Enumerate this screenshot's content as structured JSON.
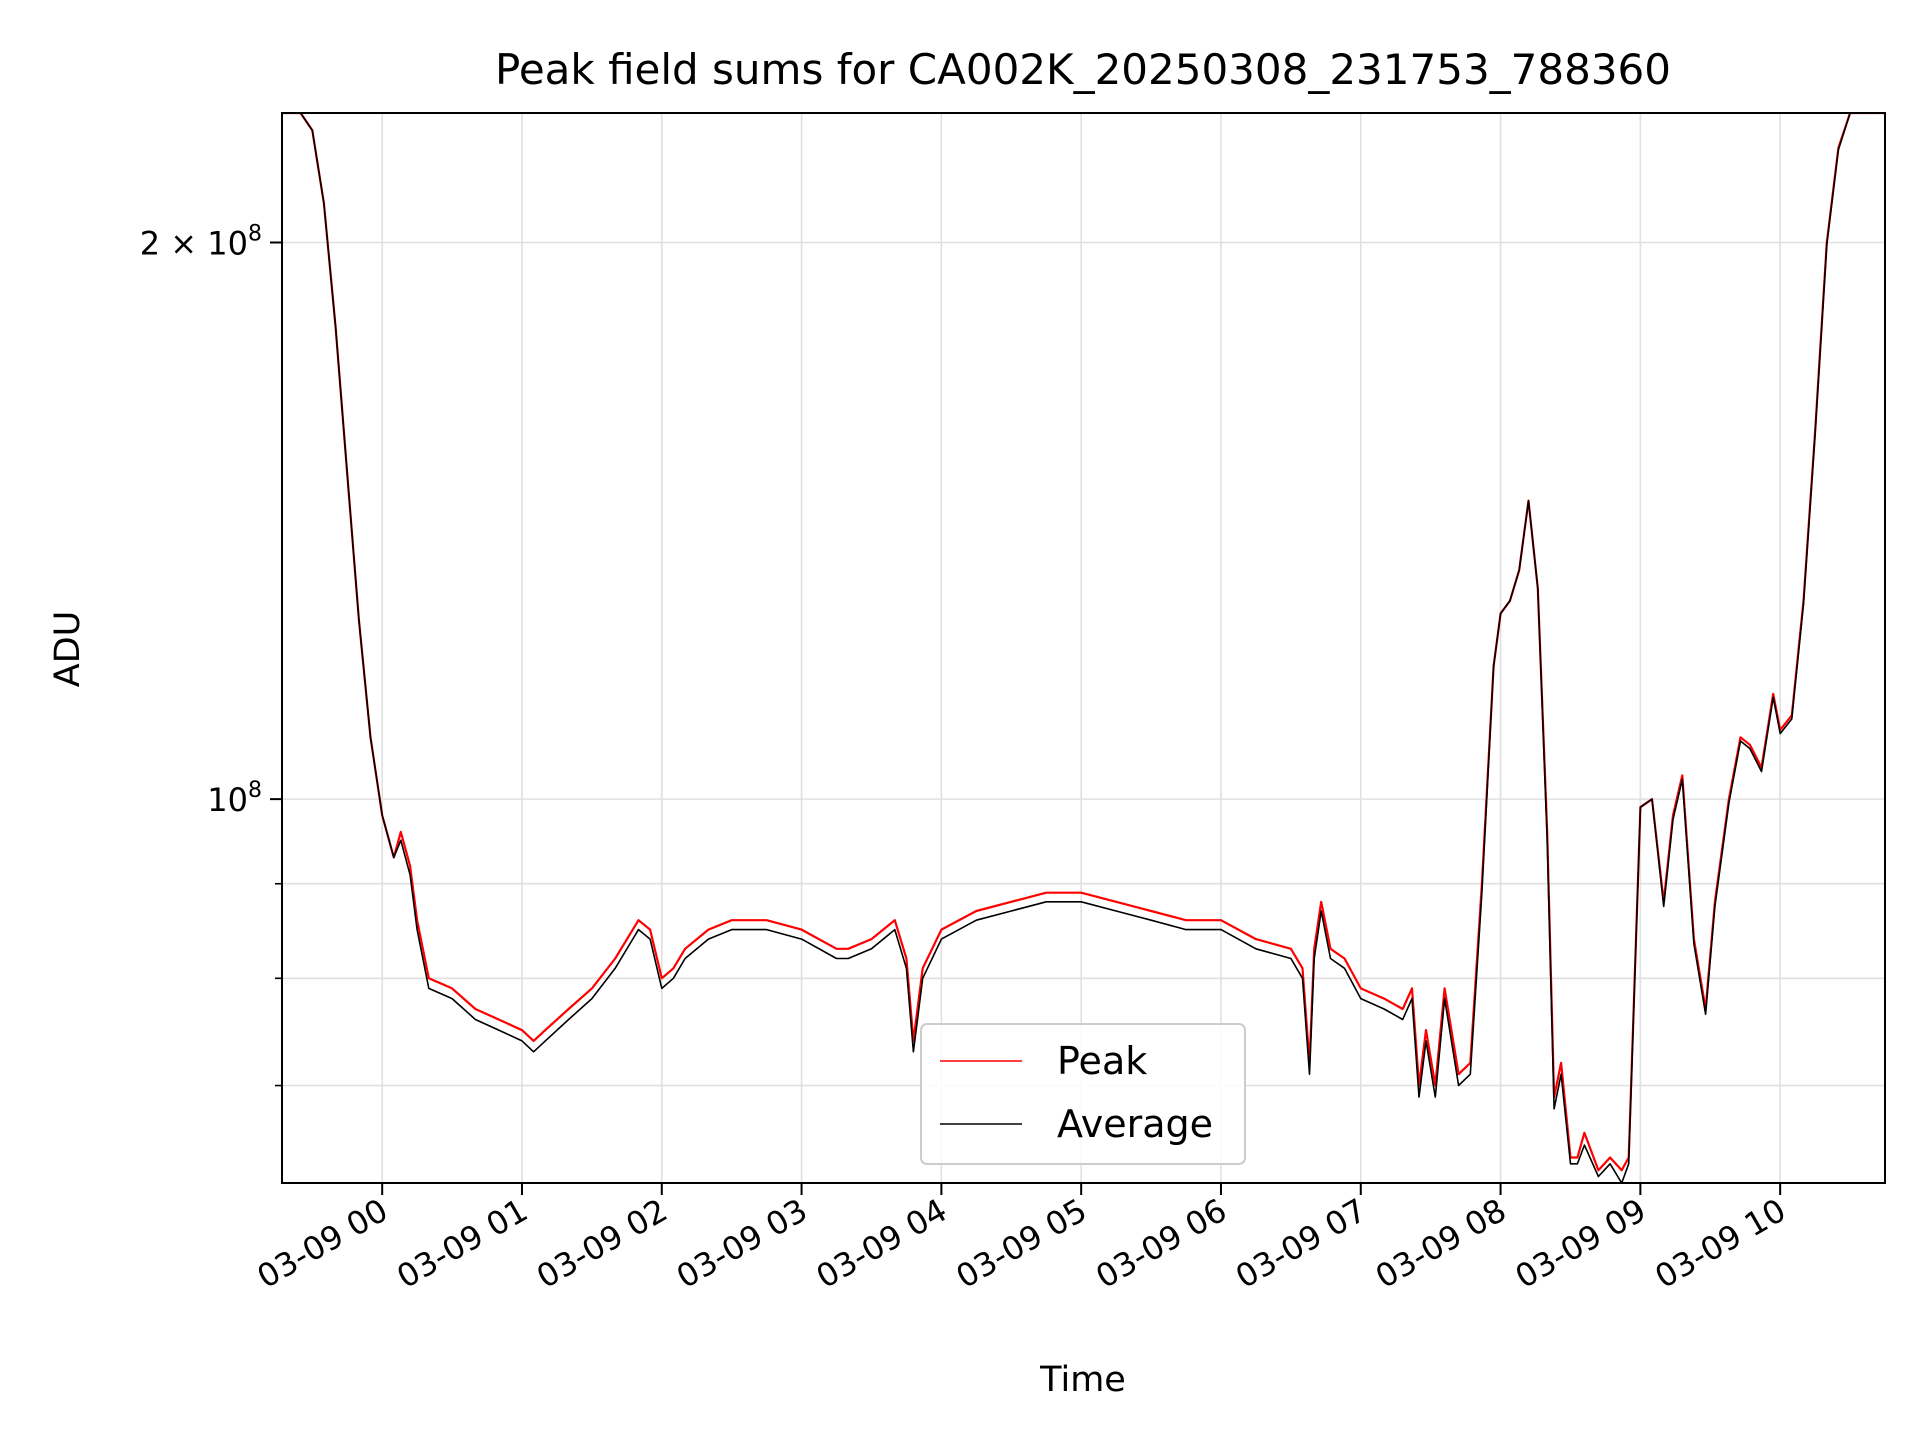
{
  "chart_data": {
    "type": "line",
    "title": "Peak field sums for CA002K_20250308_231753_788360",
    "xlabel": "Time",
    "ylabel": "ADU",
    "x_ticks": [
      "03-09 00",
      "03-09 01",
      "03-09 02",
      "03-09 03",
      "03-09 04",
      "03-09 05",
      "03-09 06",
      "03-09 07",
      "03-09 08",
      "03-09 09",
      "03-09 10"
    ],
    "y_ticks": [
      {
        "value": 200000000,
        "label": "2 × 10⁸",
        "base": "2 × 10",
        "exp": "8"
      },
      {
        "value": 100000000,
        "label": "10⁸",
        "base": "10",
        "exp": "8"
      }
    ],
    "y_scale": "log",
    "xlim": [
      "2025-03-08 23:17",
      "2025-03-09 10:45"
    ],
    "ylim": [
      62000000,
      235000000
    ],
    "grid": true,
    "legend_position": "lower-center",
    "series": [
      {
        "name": "Peak",
        "color": "#ff0000",
        "x": [
          "2025-03-08 23:17",
          "2025-03-08 23:25",
          "2025-03-08 23:30",
          "2025-03-08 23:35",
          "2025-03-08 23:40",
          "2025-03-08 23:45",
          "2025-03-08 23:50",
          "2025-03-08 23:55",
          "2025-03-09 00:00",
          "2025-03-09 00:05",
          "2025-03-09 00:08",
          "2025-03-09 00:12",
          "2025-03-09 00:15",
          "2025-03-09 00:20",
          "2025-03-09 00:30",
          "2025-03-09 00:40",
          "2025-03-09 00:50",
          "2025-03-09 01:00",
          "2025-03-09 01:05",
          "2025-03-09 01:10",
          "2025-03-09 01:20",
          "2025-03-09 01:30",
          "2025-03-09 01:40",
          "2025-03-09 01:50",
          "2025-03-09 01:55",
          "2025-03-09 02:00",
          "2025-03-09 02:05",
          "2025-03-09 02:10",
          "2025-03-09 02:20",
          "2025-03-09 02:30",
          "2025-03-09 02:45",
          "2025-03-09 03:00",
          "2025-03-09 03:15",
          "2025-03-09 03:20",
          "2025-03-09 03:30",
          "2025-03-09 03:40",
          "2025-03-09 03:45",
          "2025-03-09 03:48",
          "2025-03-09 03:52",
          "2025-03-09 04:00",
          "2025-03-09 04:15",
          "2025-03-09 04:30",
          "2025-03-09 04:45",
          "2025-03-09 05:00",
          "2025-03-09 05:15",
          "2025-03-09 05:30",
          "2025-03-09 05:45",
          "2025-03-09 06:00",
          "2025-03-09 06:15",
          "2025-03-09 06:30",
          "2025-03-09 06:35",
          "2025-03-09 06:38",
          "2025-03-09 06:40",
          "2025-03-09 06:43",
          "2025-03-09 06:47",
          "2025-03-09 06:53",
          "2025-03-09 07:00",
          "2025-03-09 07:10",
          "2025-03-09 07:18",
          "2025-03-09 07:22",
          "2025-03-09 07:25",
          "2025-03-09 07:28",
          "2025-03-09 07:32",
          "2025-03-09 07:36",
          "2025-03-09 07:42",
          "2025-03-09 07:47",
          "2025-03-09 07:52",
          "2025-03-09 07:57",
          "2025-03-09 08:00",
          "2025-03-09 08:04",
          "2025-03-09 08:08",
          "2025-03-09 08:12",
          "2025-03-09 08:16",
          "2025-03-09 08:20",
          "2025-03-09 08:23",
          "2025-03-09 08:26",
          "2025-03-09 08:30",
          "2025-03-09 08:33",
          "2025-03-09 08:36",
          "2025-03-09 08:42",
          "2025-03-09 08:47",
          "2025-03-09 08:52",
          "2025-03-09 08:55",
          "2025-03-09 09:00",
          "2025-03-09 09:05",
          "2025-03-09 09:10",
          "2025-03-09 09:14",
          "2025-03-09 09:18",
          "2025-03-09 09:23",
          "2025-03-09 09:28",
          "2025-03-09 09:32",
          "2025-03-09 09:38",
          "2025-03-09 09:43",
          "2025-03-09 09:47",
          "2025-03-09 09:52",
          "2025-03-09 09:57",
          "2025-03-09 10:00",
          "2025-03-09 10:05",
          "2025-03-09 10:10",
          "2025-03-09 10:15",
          "2025-03-09 10:20",
          "2025-03-09 10:25",
          "2025-03-09 10:30",
          "2025-03-09 10:45"
        ],
        "values": [
          235000000,
          235000000,
          230000000,
          210000000,
          180000000,
          150000000,
          125000000,
          108000000,
          98000000,
          93000000,
          96000000,
          92000000,
          86000000,
          80000000,
          79000000,
          77000000,
          76000000,
          75000000,
          74000000,
          75000000,
          77000000,
          79000000,
          82000000,
          86000000,
          85000000,
          80000000,
          81000000,
          83000000,
          85000000,
          86000000,
          86000000,
          85000000,
          83000000,
          83000000,
          84000000,
          86000000,
          82000000,
          74000000,
          81000000,
          85000000,
          87000000,
          88000000,
          89000000,
          89000000,
          88000000,
          87000000,
          86000000,
          86000000,
          84000000,
          83000000,
          81000000,
          72000000,
          83000000,
          88000000,
          83000000,
          82000000,
          79000000,
          78000000,
          77000000,
          79000000,
          70000000,
          75000000,
          70000000,
          79000000,
          71000000,
          72000000,
          90000000,
          118000000,
          126000000,
          128000000,
          133000000,
          145000000,
          130000000,
          96000000,
          69000000,
          72000000,
          64000000,
          64000000,
          66000000,
          63000000,
          64000000,
          63000000,
          64000000,
          99000000,
          100000000,
          88000000,
          98000000,
          103000000,
          84000000,
          77000000,
          88000000,
          100000000,
          108000000,
          107000000,
          104000000,
          114000000,
          109000000,
          111000000,
          128000000,
          158000000,
          200000000,
          225000000,
          235000000,
          235000000
        ]
      },
      {
        "name": "Average",
        "color": "#000000",
        "x": [
          "2025-03-08 23:17",
          "2025-03-08 23:25",
          "2025-03-08 23:30",
          "2025-03-08 23:35",
          "2025-03-08 23:40",
          "2025-03-08 23:45",
          "2025-03-08 23:50",
          "2025-03-08 23:55",
          "2025-03-09 00:00",
          "2025-03-09 00:05",
          "2025-03-09 00:08",
          "2025-03-09 00:12",
          "2025-03-09 00:15",
          "2025-03-09 00:20",
          "2025-03-09 00:30",
          "2025-03-09 00:40",
          "2025-03-09 00:50",
          "2025-03-09 01:00",
          "2025-03-09 01:05",
          "2025-03-09 01:10",
          "2025-03-09 01:20",
          "2025-03-09 01:30",
          "2025-03-09 01:40",
          "2025-03-09 01:50",
          "2025-03-09 01:55",
          "2025-03-09 02:00",
          "2025-03-09 02:05",
          "2025-03-09 02:10",
          "2025-03-09 02:20",
          "2025-03-09 02:30",
          "2025-03-09 02:45",
          "2025-03-09 03:00",
          "2025-03-09 03:15",
          "2025-03-09 03:20",
          "2025-03-09 03:30",
          "2025-03-09 03:40",
          "2025-03-09 03:45",
          "2025-03-09 03:48",
          "2025-03-09 03:52",
          "2025-03-09 04:00",
          "2025-03-09 04:15",
          "2025-03-09 04:30",
          "2025-03-09 04:45",
          "2025-03-09 05:00",
          "2025-03-09 05:15",
          "2025-03-09 05:30",
          "2025-03-09 05:45",
          "2025-03-09 06:00",
          "2025-03-09 06:15",
          "2025-03-09 06:30",
          "2025-03-09 06:35",
          "2025-03-09 06:38",
          "2025-03-09 06:40",
          "2025-03-09 06:43",
          "2025-03-09 06:47",
          "2025-03-09 06:53",
          "2025-03-09 07:00",
          "2025-03-09 07:10",
          "2025-03-09 07:18",
          "2025-03-09 07:22",
          "2025-03-09 07:25",
          "2025-03-09 07:28",
          "2025-03-09 07:32",
          "2025-03-09 07:36",
          "2025-03-09 07:42",
          "2025-03-09 07:47",
          "2025-03-09 07:52",
          "2025-03-09 07:57",
          "2025-03-09 08:00",
          "2025-03-09 08:04",
          "2025-03-09 08:08",
          "2025-03-09 08:12",
          "2025-03-09 08:16",
          "2025-03-09 08:20",
          "2025-03-09 08:23",
          "2025-03-09 08:26",
          "2025-03-09 08:30",
          "2025-03-09 08:33",
          "2025-03-09 08:36",
          "2025-03-09 08:42",
          "2025-03-09 08:47",
          "2025-03-09 08:52",
          "2025-03-09 08:55",
          "2025-03-09 09:00",
          "2025-03-09 09:05",
          "2025-03-09 09:10",
          "2025-03-09 09:14",
          "2025-03-09 09:18",
          "2025-03-09 09:23",
          "2025-03-09 09:28",
          "2025-03-09 09:32",
          "2025-03-09 09:38",
          "2025-03-09 09:43",
          "2025-03-09 09:47",
          "2025-03-09 09:52",
          "2025-03-09 09:57",
          "2025-03-09 10:00",
          "2025-03-09 10:05",
          "2025-03-09 10:10",
          "2025-03-09 10:15",
          "2025-03-09 10:20",
          "2025-03-09 10:25",
          "2025-03-09 10:30",
          "2025-03-09 10:45"
        ],
        "values": [
          235000000,
          235000000,
          230000000,
          210000000,
          180000000,
          150000000,
          125000000,
          108000000,
          98000000,
          93000000,
          95000000,
          91000000,
          85000000,
          79000000,
          78000000,
          76000000,
          75000000,
          74000000,
          73000000,
          74000000,
          76000000,
          78000000,
          81000000,
          85000000,
          84000000,
          79000000,
          80000000,
          82000000,
          84000000,
          85000000,
          85000000,
          84000000,
          82000000,
          82000000,
          83000000,
          85000000,
          81000000,
          73000000,
          80000000,
          84000000,
          86000000,
          87000000,
          88000000,
          88000000,
          87000000,
          86000000,
          85000000,
          85000000,
          83000000,
          82000000,
          80000000,
          71000000,
          82000000,
          87000000,
          82000000,
          81000000,
          78000000,
          77000000,
          76000000,
          78000000,
          69000000,
          74000000,
          69000000,
          78000000,
          70000000,
          71000000,
          89000000,
          118000000,
          126000000,
          128000000,
          133000000,
          145000000,
          130000000,
          95000000,
          68000000,
          71000000,
          63500000,
          63500000,
          65000000,
          62500000,
          63500000,
          62000000,
          63500000,
          99000000,
          100000000,
          87500000,
          97500000,
          102500000,
          83500000,
          76500000,
          87500000,
          99500000,
          107500000,
          106500000,
          103500000,
          113500000,
          108500000,
          110500000,
          127500000,
          157500000,
          199500000,
          224500000,
          235000000,
          235000000
        ]
      }
    ]
  }
}
